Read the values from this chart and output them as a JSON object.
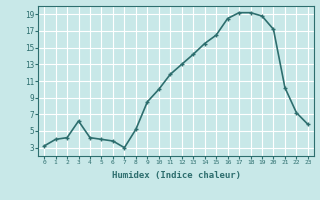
{
  "x": [
    0,
    1,
    2,
    3,
    4,
    5,
    6,
    7,
    8,
    9,
    10,
    11,
    12,
    13,
    14,
    15,
    16,
    17,
    18,
    19,
    20,
    21,
    22,
    23
  ],
  "y": [
    3.2,
    4.0,
    4.2,
    6.2,
    4.2,
    4.0,
    3.8,
    3.0,
    5.2,
    8.5,
    10.0,
    11.8,
    13.0,
    14.2,
    15.5,
    16.5,
    18.5,
    19.2,
    19.2,
    18.8,
    17.2,
    10.2,
    7.2,
    5.8
  ],
  "line_color": "#2d6e6e",
  "marker": "+",
  "marker_size": 3,
  "background_color": "#c8e8e8",
  "grid_color": "#ffffff",
  "xlabel": "Humidex (Indice chaleur)",
  "xlim": [
    -0.5,
    23.5
  ],
  "ylim": [
    2,
    20
  ],
  "yticks": [
    3,
    5,
    7,
    9,
    11,
    13,
    15,
    17,
    19
  ],
  "xtick_labels": [
    "0",
    "1",
    "2",
    "3",
    "4",
    "5",
    "6",
    "7",
    "8",
    "9",
    "10",
    "11",
    "12",
    "13",
    "14",
    "15",
    "16",
    "17",
    "18",
    "19",
    "20",
    "21",
    "22",
    "23"
  ],
  "font_color": "#2d6e6e",
  "linewidth": 1.2
}
